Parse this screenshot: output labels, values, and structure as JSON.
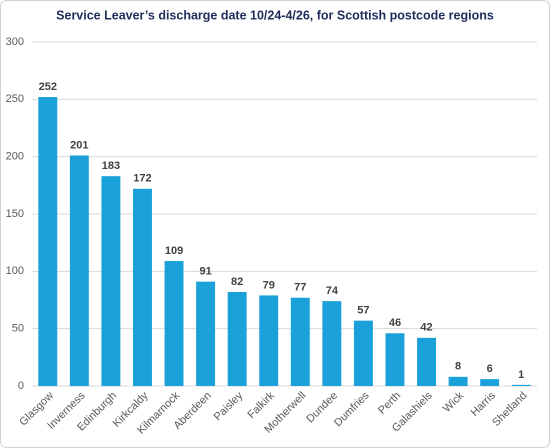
{
  "chart_data": {
    "type": "bar",
    "title": "Service Leaver’s discharge date 10/24-4/26, for Scottish postcode regions",
    "categories": [
      "Glasgow",
      "Inverness",
      "Edinburgh",
      "Kirkcaldy",
      "Kilmarnock",
      "Aberdeen",
      "Paisley",
      "Falkirk",
      "Motherwell",
      "Dundee",
      "Dumfries",
      "Perth",
      "Galashiels",
      "Wick",
      "Harris",
      "Shetland"
    ],
    "values": [
      252,
      201,
      183,
      172,
      109,
      91,
      82,
      79,
      77,
      74,
      57,
      46,
      42,
      8,
      6,
      1
    ],
    "color": "#1ba1d9",
    "ylim": [
      0,
      300
    ],
    "yticks": [
      0,
      50,
      100,
      150,
      200,
      250,
      300
    ],
    "grid": true
  }
}
